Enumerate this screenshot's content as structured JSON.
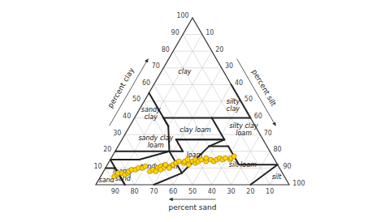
{
  "chart_data": {
    "type": "ternary",
    "axis_labels": {
      "clay": "percent clay",
      "silt": "percent silt",
      "sand": "percent sand"
    },
    "clay_ticks": [
      10,
      20,
      30,
      40,
      50,
      60,
      70,
      80,
      90,
      100
    ],
    "silt_ticks": [
      10,
      20,
      30,
      40,
      50,
      60,
      70,
      80,
      90,
      100
    ],
    "sand_ticks": [
      90,
      80,
      70,
      60,
      50,
      40,
      30,
      20,
      10
    ],
    "grid": true,
    "boundaries": [
      [
        [
          40,
          45,
          15
        ],
        [
          40,
          20,
          40
        ]
      ],
      [
        [
          40,
          20,
          40
        ],
        [
          40,
          0,
          60
        ]
      ],
      [
        [
          35,
          45,
          20
        ],
        [
          55,
          45,
          0
        ]
      ],
      [
        [
          40,
          0,
          60
        ],
        [
          60,
          0,
          40
        ]
      ],
      [
        [
          27,
          45,
          28
        ],
        [
          27,
          20,
          53
        ]
      ],
      [
        [
          40,
          45,
          15
        ],
        [
          35,
          45,
          20
        ]
      ],
      [
        [
          27,
          20,
          53
        ],
        [
          40,
          20,
          40
        ]
      ],
      [
        [
          20,
          52,
          28
        ],
        [
          20,
          45,
          35
        ]
      ],
      [
        [
          20,
          45,
          35
        ],
        [
          27,
          45,
          28
        ]
      ],
      [
        [
          20,
          52,
          28
        ],
        [
          35,
          45,
          20
        ]
      ],
      [
        [
          20,
          52,
          28
        ],
        [
          20,
          80,
          0
        ]
      ],
      [
        [
          27,
          45,
          28
        ],
        [
          27,
          20,
          53
        ]
      ],
      [
        [
          7,
          52,
          41
        ],
        [
          20,
          52,
          28
        ]
      ],
      [
        [
          7,
          52,
          41
        ],
        [
          23,
          30,
          47
        ]
      ],
      [
        [
          23,
          30,
          47
        ],
        [
          27,
          20,
          53
        ]
      ],
      [
        [
          12,
          0,
          88
        ],
        [
          12,
          20,
          68
        ]
      ],
      [
        [
          12,
          20,
          68
        ],
        [
          23,
          20,
          57
        ]
      ],
      [
        [
          23,
          20,
          57
        ],
        [
          23,
          30,
          47
        ]
      ],
      [
        [
          0,
          70,
          30
        ],
        [
          7,
          52,
          41
        ]
      ],
      [
        [
          15,
          70,
          15
        ],
        [
          15,
          85,
          0
        ]
      ],
      [
        [
          15,
          70,
          15
        ],
        [
          20,
          52,
          28
        ]
      ],
      [
        [
          0,
          85,
          15
        ],
        [
          10,
          85,
          5
        ]
      ],
      [
        [
          10,
          85,
          5
        ],
        [
          10,
          90,
          0
        ]
      ],
      [
        [
          0,
          85,
          15
        ],
        [
          15,
          85,
          0
        ]
      ],
      [
        [
          0,
          20,
          80
        ],
        [
          12,
          0,
          88
        ]
      ]
    ],
    "soil_labels": [
      {
        "name": "clay",
        "clay": 68,
        "sand": 20,
        "silt": 12
      },
      {
        "name": "sandy\nclay",
        "clay": 43,
        "sand": 50,
        "silt": 7
      },
      {
        "name": "silty\nclay",
        "clay": 48,
        "sand": 5,
        "silt": 47
      },
      {
        "name": "clay loam",
        "clay": 33,
        "sand": 32,
        "silt": 35
      },
      {
        "name": "silty clay\nloam",
        "clay": 33,
        "sand": 7,
        "silt": 60
      },
      {
        "name": "sandy clay\nloam",
        "clay": 26,
        "sand": 56,
        "silt": 18
      },
      {
        "name": "loam",
        "clay": 18,
        "sand": 40,
        "silt": 42
      },
      {
        "name": "silt loam",
        "clay": 12,
        "sand": 18,
        "silt": 70
      },
      {
        "name": "silt",
        "clay": 5,
        "sand": 4,
        "silt": 91
      },
      {
        "name": "sandy loam",
        "clay": 11,
        "sand": 62,
        "silt": 27
      },
      {
        "name": "loamy\nsand",
        "clay": 6,
        "sand": 83,
        "silt": 11
      },
      {
        "name": "sand",
        "clay": 3,
        "sand": 93,
        "silt": 4
      }
    ],
    "samples": {
      "color": "#FFD700",
      "marker": "circle",
      "sand": [
        88,
        86,
        85,
        83,
        82,
        80,
        79,
        77,
        75,
        73,
        71,
        69,
        68,
        66,
        63,
        61,
        60,
        58,
        56,
        54,
        52,
        50,
        48,
        47,
        46,
        45,
        43,
        42,
        41,
        40,
        38,
        36,
        35,
        33,
        32,
        30,
        28,
        27,
        25,
        23,
        22,
        20,
        65,
        62,
        57
      ],
      "clay": [
        5,
        6,
        7,
        7,
        6,
        7,
        8,
        9,
        9,
        10,
        10,
        11,
        8,
        9,
        10,
        11,
        10,
        12,
        11,
        12,
        13,
        14,
        13,
        14,
        12,
        15,
        14,
        13,
        15,
        14,
        15,
        14,
        16,
        15,
        14,
        15,
        16,
        15,
        16,
        15,
        16,
        17,
        8,
        9,
        10
      ],
      "silt": [
        7,
        8,
        8,
        10,
        12,
        13,
        13,
        14,
        16,
        17,
        19,
        20,
        24,
        25,
        27,
        28,
        30,
        30,
        33,
        34,
        35,
        36,
        39,
        39,
        42,
        40,
        43,
        45,
        44,
        46,
        47,
        50,
        49,
        52,
        54,
        55,
        56,
        58,
        59,
        62,
        62,
        63,
        27,
        29,
        33
      ]
    }
  }
}
